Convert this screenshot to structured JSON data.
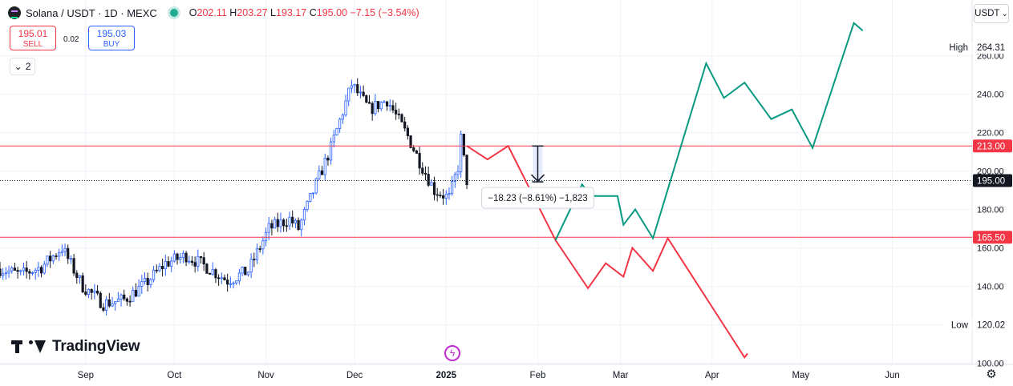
{
  "legend": {
    "symbol": "Solana / USDT · 1D · MEXC",
    "open_label": "O",
    "open": "202.11",
    "high_label": "H",
    "high": "203.27",
    "low_label": "L",
    "low": "193.17",
    "close_label": "C",
    "close": "195.00",
    "change": "−7.15 (−3.54%)"
  },
  "trade": {
    "sell_price": "195.01",
    "sell_label": "SELL",
    "spread": "0.02",
    "buy_price": "195.03",
    "buy_label": "BUY"
  },
  "indicators_count": "2",
  "currency": "USDT",
  "brand": "TradingView",
  "colors": {
    "up": "#2962ff",
    "down": "#131722",
    "bull_path": "#089981",
    "bear_path": "#f23645",
    "level": "#f23645",
    "price_line": "#131722"
  },
  "chart_data": {
    "type": "candlestick",
    "symbol": "SOL/USDT",
    "timeframe": "1D",
    "exchange": "MEXC",
    "ylim": [
      100,
      270
    ],
    "y_ticks": [
      100,
      120,
      140,
      160,
      180,
      200,
      220,
      240,
      260
    ],
    "x_labels": [
      "Sep",
      "Oct",
      "Nov",
      "Dec",
      "2025",
      "Feb",
      "Mar",
      "Apr",
      "May",
      "Jun"
    ],
    "x_label_dates": [
      "2024-09-01",
      "2024-10-01",
      "2024-11-01",
      "2024-12-01",
      "2025-01-01",
      "2025-02-01",
      "2025-03-01",
      "2025-04-01",
      "2025-05-01",
      "2025-06-01"
    ],
    "date_range": [
      "2024-08-03",
      "2025-06-28"
    ],
    "candles_range": [
      "2024-08-03",
      "2025-01-08"
    ],
    "close_path": [
      [
        "2024-08-03",
        149
      ],
      [
        "2024-08-10",
        146
      ],
      [
        "2024-08-17",
        150
      ],
      [
        "2024-08-24",
        160
      ],
      [
        "2024-08-31",
        140
      ],
      [
        "2024-09-07",
        131
      ],
      [
        "2024-09-14",
        133
      ],
      [
        "2024-09-21",
        141
      ],
      [
        "2024-09-28",
        152
      ],
      [
        "2024-10-05",
        156
      ],
      [
        "2024-10-12",
        150
      ],
      [
        "2024-10-19",
        143
      ],
      [
        "2024-10-26",
        148
      ],
      [
        "2024-11-02",
        170
      ],
      [
        "2024-11-09",
        175
      ],
      [
        "2024-11-12",
        170
      ],
      [
        "2024-11-19",
        197
      ],
      [
        "2024-11-23",
        212
      ],
      [
        "2024-11-30",
        245
      ],
      [
        "2024-12-06",
        232
      ],
      [
        "2024-12-12",
        237
      ],
      [
        "2024-12-19",
        218
      ],
      [
        "2024-12-23",
        205
      ],
      [
        "2024-12-28",
        190
      ],
      [
        "2025-01-02",
        186
      ],
      [
        "2025-01-05",
        202
      ],
      [
        "2025-01-06",
        217
      ],
      [
        "2025-01-08",
        195
      ]
    ],
    "levels": [
      213.0,
      165.5
    ],
    "current_price": 195.0,
    "high_label": "High",
    "high_value": "264.31",
    "low_label": "Low",
    "low_value": "120.02",
    "level_labels": [
      "213.00",
      "165.50"
    ],
    "current_label": "195.00",
    "measure": {
      "from_date": "2025-02-01",
      "from_value": 213.0,
      "to_value": 194.77,
      "label": "−18.23 (−8.61%) −1,823"
    },
    "bearish_path": [
      [
        "2025-01-08",
        213
      ],
      [
        "2025-01-15",
        206
      ],
      [
        "2025-01-22",
        213
      ],
      [
        "2025-02-07",
        164
      ],
      [
        "2025-02-18",
        139
      ],
      [
        "2025-02-24",
        152
      ],
      [
        "2025-03-02",
        145
      ],
      [
        "2025-03-05",
        160
      ],
      [
        "2025-03-12",
        148
      ],
      [
        "2025-03-17",
        165
      ],
      [
        "2025-04-12",
        103
      ],
      [
        "2025-04-13",
        105
      ]
    ],
    "bullish_path": [
      [
        "2025-02-07",
        164
      ],
      [
        "2025-02-16",
        193
      ],
      [
        "2025-02-19",
        187
      ],
      [
        "2025-02-28",
        187
      ],
      [
        "2025-03-02",
        172
      ],
      [
        "2025-03-06",
        180
      ],
      [
        "2025-03-12",
        165
      ],
      [
        "2025-03-30",
        256
      ],
      [
        "2025-04-05",
        238
      ],
      [
        "2025-04-12",
        246
      ],
      [
        "2025-04-21",
        227
      ],
      [
        "2025-04-28",
        232
      ],
      [
        "2025-05-05",
        212
      ],
      [
        "2025-05-19",
        277
      ],
      [
        "2025-05-22",
        273
      ]
    ]
  }
}
